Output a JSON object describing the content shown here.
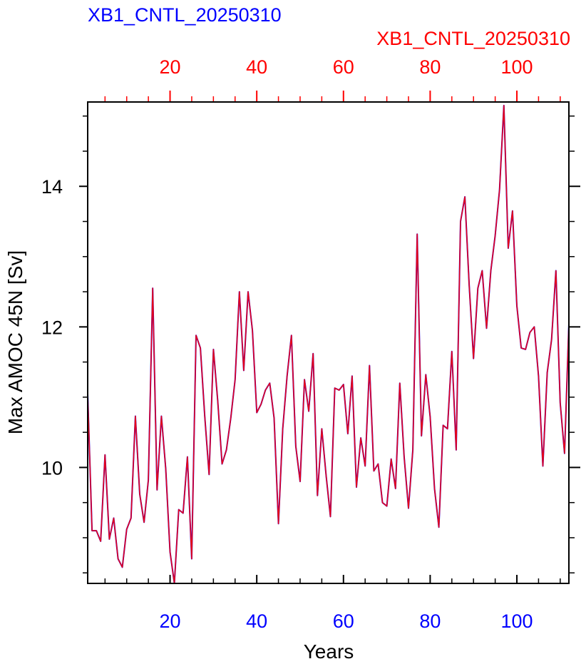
{
  "chart_data": {
    "type": "line",
    "title_left": "XB1_CNTL_20250310",
    "title_right": "XB1_CNTL_20250310",
    "xlabel": "Years",
    "ylabel": "Max AMOC 45N [Sv]",
    "xlim": [
      1,
      112
    ],
    "ylim": [
      8.35,
      15.2
    ],
    "x_ticks_bottom": [
      20,
      40,
      60,
      80,
      100
    ],
    "x_ticks_top": [
      20,
      40,
      60,
      80,
      100
    ],
    "y_ticks": [
      10,
      12,
      14
    ],
    "colors": {
      "bottom_axis": "#0000ff",
      "top_axis": "#ff0000",
      "series_a": "#0000ff",
      "series_b": "#ff0000",
      "axes": "#000000"
    },
    "series": [
      {
        "name": "XB1_CNTL_20250310",
        "x": [
          1,
          2,
          3,
          4,
          5,
          6,
          7,
          8,
          9,
          10,
          11,
          12,
          13,
          14,
          15,
          16,
          17,
          18,
          19,
          20,
          21,
          22,
          23,
          24,
          25,
          26,
          27,
          28,
          29,
          30,
          31,
          32,
          33,
          34,
          35,
          36,
          37,
          38,
          39,
          40,
          41,
          42,
          43,
          44,
          45,
          46,
          47,
          48,
          49,
          50,
          51,
          52,
          53,
          54,
          55,
          56,
          57,
          58,
          59,
          60,
          61,
          62,
          63,
          64,
          65,
          66,
          67,
          68,
          69,
          70,
          71,
          72,
          73,
          74,
          75,
          76,
          77,
          78,
          79,
          80,
          81,
          82,
          83,
          84,
          85,
          86,
          87,
          88,
          89,
          90,
          91,
          92,
          93,
          94,
          95,
          96,
          97,
          98,
          99,
          100,
          101,
          102,
          103,
          104,
          105,
          106,
          107,
          108,
          109,
          110,
          111,
          112
        ],
        "y": [
          11.05,
          9.1,
          9.1,
          8.95,
          10.18,
          8.98,
          9.28,
          8.7,
          8.58,
          9.12,
          9.28,
          10.73,
          9.62,
          9.22,
          9.82,
          12.55,
          9.68,
          10.73,
          9.98,
          8.8,
          8.35,
          9.4,
          9.35,
          10.15,
          8.7,
          11.88,
          11.7,
          10.73,
          9.9,
          11.68,
          10.95,
          10.05,
          10.25,
          10.7,
          11.25,
          12.5,
          11.38,
          12.5,
          11.95,
          10.78,
          10.9,
          11.1,
          11.2,
          10.7,
          9.2,
          10.55,
          11.3,
          11.88,
          10.3,
          9.8,
          11.25,
          10.8,
          11.62,
          9.6,
          10.55,
          9.88,
          9.3,
          11.13,
          11.1,
          11.18,
          10.48,
          11.3,
          9.72,
          10.42,
          10.02,
          11.45,
          9.95,
          10.05,
          9.5,
          9.45,
          10.12,
          9.7,
          11.2,
          10.15,
          9.42,
          10.25,
          13.32,
          10.45,
          11.32,
          10.72,
          9.7,
          9.15,
          10.6,
          10.55,
          11.65,
          10.25,
          13.5,
          13.85,
          12.6,
          11.55,
          12.55,
          12.8,
          11.98,
          12.8,
          13.3,
          13.95,
          15.15,
          13.12,
          13.65,
          12.3,
          11.7,
          11.68,
          11.92,
          12.0,
          11.3,
          10.02,
          11.35,
          11.82,
          12.8,
          10.92,
          10.2,
          12.05
        ]
      }
    ]
  }
}
